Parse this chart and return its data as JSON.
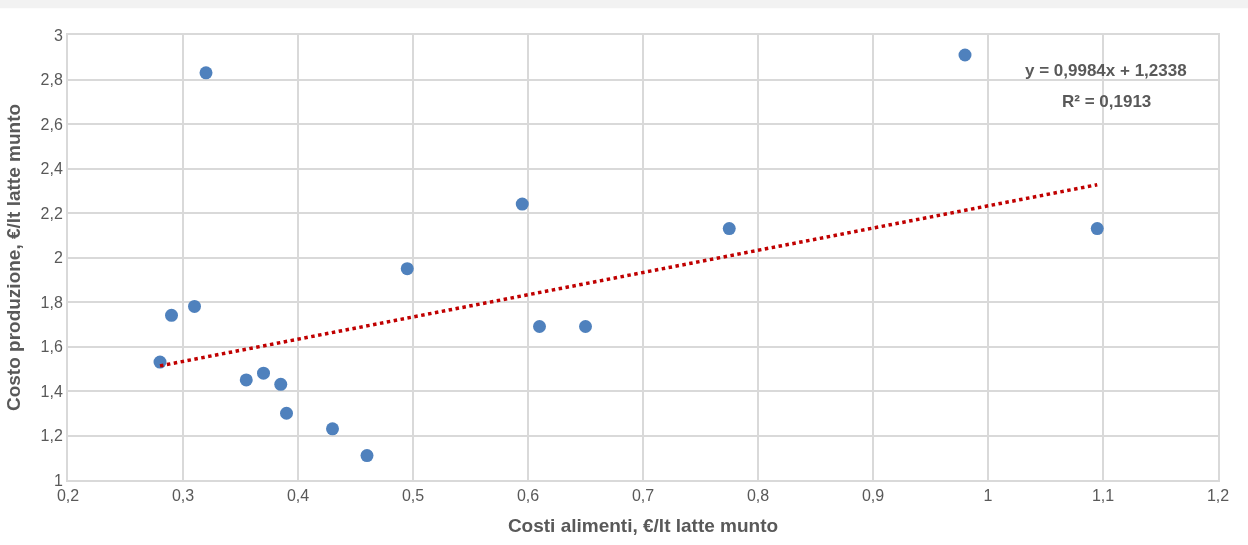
{
  "chart_data": {
    "type": "scatter",
    "xlabel": "Costi alimenti, €/lt latte munto",
    "ylabel": "Costo produzione, €/lt latte munto",
    "series": [
      {
        "color": "#4f81bd",
        "marker": "circle",
        "x": [
          0.28,
          0.29,
          0.31,
          0.32,
          0.355,
          0.37,
          0.385,
          0.39,
          0.43,
          0.46,
          0.495,
          0.595,
          0.61,
          0.65,
          0.775,
          0.98,
          1.095
        ],
        "values": [
          1.53,
          1.74,
          1.78,
          2.83,
          1.45,
          1.48,
          1.43,
          1.3,
          1.23,
          1.11,
          1.95,
          2.24,
          1.69,
          1.69,
          2.13,
          2.91,
          2.13
        ]
      },
      {
        "type": "line",
        "color": "#c00000",
        "line_style": "dotted",
        "x": [
          0.28,
          1.095
        ],
        "values": [
          1.513,
          2.327
        ]
      }
    ],
    "annotations": [
      "y = 0,9984x + 1,2338",
      "R² = 0,1913"
    ],
    "xlim": [
      0.2,
      1.2
    ],
    "xticks": [
      {
        "value": 0.2,
        "label": "0,2"
      },
      {
        "value": 0.3,
        "label": "0,3"
      },
      {
        "value": 0.4,
        "label": "0,4"
      },
      {
        "value": 0.5,
        "label": "0,5"
      },
      {
        "value": 0.6,
        "label": "0,6"
      },
      {
        "value": 0.7,
        "label": "0,7"
      },
      {
        "value": 0.8,
        "label": "0,8"
      },
      {
        "value": 0.9,
        "label": "0,9"
      },
      1,
      {
        "value": 1.1,
        "label": "1,1"
      },
      {
        "value": 1.2,
        "label": "1,2"
      }
    ],
    "ylim": [
      1,
      3
    ],
    "yticks": [
      1,
      {
        "value": 1.2,
        "label": "1,2"
      },
      {
        "value": 1.4,
        "label": "1,4"
      },
      {
        "value": 1.6,
        "label": "1,6"
      },
      {
        "value": 1.8,
        "label": "1,8"
      },
      2,
      {
        "value": 2.2,
        "label": "2,2"
      },
      {
        "value": 2.4,
        "label": "2,4"
      },
      {
        "value": 2.6,
        "label": "2,6"
      },
      {
        "value": 2.8,
        "label": "2,8"
      },
      3
    ],
    "grid": true
  }
}
